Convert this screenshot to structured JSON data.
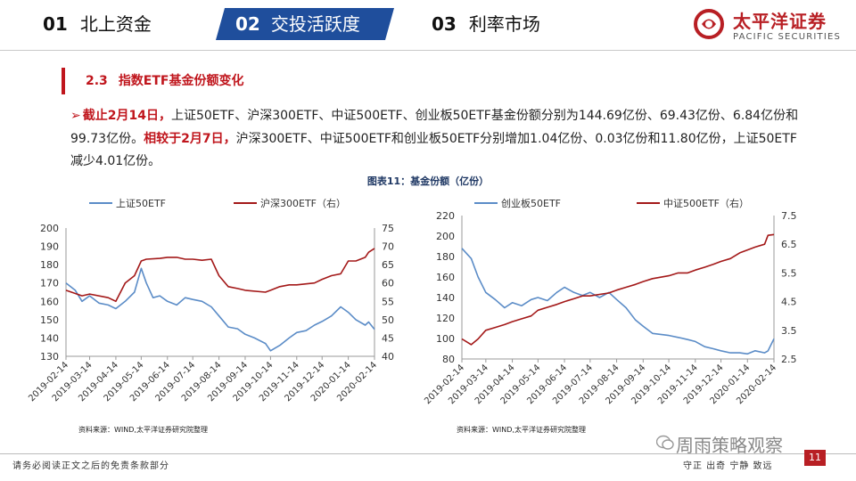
{
  "nav": {
    "items": [
      {
        "num": "01",
        "label": "北上资金"
      },
      {
        "num": "02",
        "label": "交投活跃度"
      },
      {
        "num": "03",
        "label": "利率市场"
      }
    ],
    "active_index": 1,
    "active_color": "#1f4e9c"
  },
  "logo": {
    "cn": "太平洋证券",
    "en": "PACIFIC SECURITIES",
    "color": "#b81f24"
  },
  "section": {
    "num": "2.3",
    "title": "指数ETF基金份额变化"
  },
  "paragraph": {
    "arrow": "➢",
    "h1": "截止2月14日，",
    "t1": "上证50ETF、沪深300ETF、中证500ETF、创业板50ETF基金份额分别为144.69亿份、69.43亿份、6.84亿份和99.73亿份。",
    "h2": "相较于2月7日，",
    "t2": "沪深300ETF、中证500ETF和创业板50ETF分别增加1.04亿份、0.03亿份和11.80亿份，上证50ETF减少4.01亿份。"
  },
  "figure_title": "图表11：基金份额（亿份）",
  "source_text": "资料来源：WIND,太平洋证券研究院整理",
  "footer": {
    "left": "请务必阅读正文之后的免责条款部分",
    "right": "守正  出奇  宁静  致远",
    "page": "11"
  },
  "watermark": "周雨策略观察",
  "colors": {
    "blue": "#5b8cc7",
    "red": "#a31818",
    "brand_red": "#c0161d"
  },
  "chart_data": [
    {
      "type": "line",
      "legend_position": "top",
      "grid": false,
      "x_ticks": [
        "2019-02-14",
        "2019-03-14",
        "2019-04-14",
        "2019-05-14",
        "2019-06-14",
        "2019-07-14",
        "2019-08-14",
        "2019-09-14",
        "2019-10-14",
        "2019-11-14",
        "2019-12-14",
        "2020-01-14",
        "2020-02-14"
      ],
      "y_left": {
        "min": 130,
        "max": 200,
        "ticks": [
          130,
          140,
          150,
          160,
          170,
          180,
          190,
          200
        ]
      },
      "y_right": {
        "min": 40,
        "max": 75,
        "ticks": [
          40,
          45,
          50,
          55,
          60,
          65,
          70,
          75
        ]
      },
      "series": [
        {
          "name": "上证50ETF",
          "axis": "left",
          "color": "#5b8cc7",
          "x": [
            "2019-02-14",
            "2019-02-25",
            "2019-03-05",
            "2019-03-14",
            "2019-03-25",
            "2019-04-05",
            "2019-04-14",
            "2019-04-25",
            "2019-05-06",
            "2019-05-14",
            "2019-05-20",
            "2019-05-28",
            "2019-06-05",
            "2019-06-14",
            "2019-06-25",
            "2019-07-05",
            "2019-07-14",
            "2019-07-25",
            "2019-08-05",
            "2019-08-14",
            "2019-08-25",
            "2019-09-05",
            "2019-09-14",
            "2019-09-25",
            "2019-10-08",
            "2019-10-14",
            "2019-10-25",
            "2019-11-05",
            "2019-11-14",
            "2019-11-25",
            "2019-12-05",
            "2019-12-14",
            "2019-12-25",
            "2020-01-05",
            "2020-01-14",
            "2020-01-23",
            "2020-02-03",
            "2020-02-07",
            "2020-02-14"
          ],
          "y": [
            170,
            166,
            160,
            163,
            159,
            158,
            156,
            160,
            165,
            178,
            170,
            162,
            163,
            160,
            158,
            162,
            161,
            160,
            157,
            152,
            146,
            145,
            142,
            140,
            137,
            133,
            136,
            140,
            143,
            144,
            147,
            149,
            152,
            157,
            154,
            150,
            147,
            148.7,
            144.69
          ]
        },
        {
          "name": "沪深300ETF（右）",
          "axis": "right",
          "color": "#a31818",
          "x": [
            "2019-02-14",
            "2019-03-05",
            "2019-03-14",
            "2019-04-05",
            "2019-04-14",
            "2019-04-25",
            "2019-05-06",
            "2019-05-14",
            "2019-05-20",
            "2019-06-05",
            "2019-06-14",
            "2019-06-25",
            "2019-07-05",
            "2019-07-14",
            "2019-07-25",
            "2019-08-05",
            "2019-08-14",
            "2019-08-25",
            "2019-09-05",
            "2019-09-14",
            "2019-10-08",
            "2019-10-14",
            "2019-10-25",
            "2019-11-05",
            "2019-11-14",
            "2019-12-05",
            "2019-12-14",
            "2019-12-25",
            "2020-01-05",
            "2020-01-14",
            "2020-01-23",
            "2020-02-03",
            "2020-02-07",
            "2020-02-14"
          ],
          "y": [
            58,
            56.5,
            57,
            56,
            55,
            60,
            62,
            66,
            66.5,
            66.7,
            67,
            67,
            66.5,
            66.5,
            66.2,
            66.5,
            62,
            59,
            58.5,
            58,
            57.5,
            58,
            59,
            59.5,
            59.5,
            60,
            61,
            62,
            62.5,
            66,
            66,
            67,
            68.39,
            69.43
          ]
        }
      ]
    },
    {
      "type": "line",
      "legend_position": "top",
      "grid": false,
      "x_ticks": [
        "2019-02-14",
        "2019-03-14",
        "2019-04-14",
        "2019-05-14",
        "2019-06-14",
        "2019-07-14",
        "2019-08-14",
        "2019-09-14",
        "2019-10-14",
        "2019-11-14",
        "2019-12-14",
        "2020-01-14",
        "2020-02-14"
      ],
      "y_left": {
        "min": 80,
        "max": 220,
        "ticks": [
          80,
          100,
          120,
          140,
          160,
          180,
          200,
          220
        ]
      },
      "y_right": {
        "min": 2.5,
        "max": 7.5,
        "ticks": [
          2.5,
          3.5,
          4.5,
          5.5,
          6.5,
          7.5
        ]
      },
      "series": [
        {
          "name": "创业板50ETF",
          "axis": "left",
          "color": "#5b8cc7",
          "x": [
            "2019-02-14",
            "2019-02-25",
            "2019-03-05",
            "2019-03-14",
            "2019-03-25",
            "2019-04-05",
            "2019-04-14",
            "2019-04-25",
            "2019-05-06",
            "2019-05-14",
            "2019-05-25",
            "2019-06-05",
            "2019-06-14",
            "2019-06-25",
            "2019-07-05",
            "2019-07-14",
            "2019-07-25",
            "2019-08-05",
            "2019-08-14",
            "2019-08-25",
            "2019-09-05",
            "2019-09-14",
            "2019-09-25",
            "2019-10-14",
            "2019-10-25",
            "2019-11-05",
            "2019-11-14",
            "2019-11-25",
            "2019-12-05",
            "2019-12-14",
            "2019-12-25",
            "2020-01-05",
            "2020-01-14",
            "2020-01-23",
            "2020-02-03",
            "2020-02-07",
            "2020-02-14"
          ],
          "y": [
            188,
            178,
            160,
            145,
            138,
            130,
            135,
            132,
            138,
            140,
            137,
            145,
            150,
            145,
            142,
            145,
            140,
            145,
            138,
            130,
            118,
            112,
            105,
            103,
            101,
            99,
            97,
            92,
            90,
            88,
            86,
            86,
            85,
            88,
            86,
            87.93,
            99.73
          ]
        },
        {
          "name": "中证500ETF（右）",
          "axis": "right",
          "color": "#a31818",
          "x": [
            "2019-02-14",
            "2019-02-25",
            "2019-03-05",
            "2019-03-14",
            "2019-03-25",
            "2019-04-05",
            "2019-04-14",
            "2019-04-25",
            "2019-05-06",
            "2019-05-14",
            "2019-05-25",
            "2019-06-05",
            "2019-06-14",
            "2019-06-25",
            "2019-07-05",
            "2019-07-14",
            "2019-07-25",
            "2019-08-05",
            "2019-08-14",
            "2019-08-25",
            "2019-09-05",
            "2019-09-14",
            "2019-09-25",
            "2019-10-14",
            "2019-10-25",
            "2019-11-05",
            "2019-11-14",
            "2019-11-25",
            "2019-12-05",
            "2019-12-14",
            "2019-12-25",
            "2020-01-05",
            "2020-01-14",
            "2020-01-23",
            "2020-02-03",
            "2020-02-07",
            "2020-02-14"
          ],
          "y": [
            3.2,
            3.0,
            3.2,
            3.5,
            3.6,
            3.7,
            3.8,
            3.9,
            4.0,
            4.2,
            4.3,
            4.4,
            4.5,
            4.6,
            4.7,
            4.7,
            4.75,
            4.8,
            4.9,
            5.0,
            5.1,
            5.2,
            5.3,
            5.4,
            5.5,
            5.5,
            5.6,
            5.7,
            5.8,
            5.9,
            6.0,
            6.2,
            6.3,
            6.4,
            6.5,
            6.81,
            6.84
          ]
        }
      ]
    }
  ]
}
